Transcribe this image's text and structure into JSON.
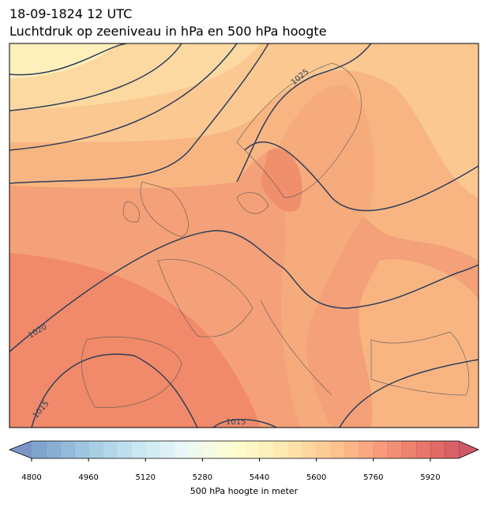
{
  "header": {
    "title": "18-09-1824 12 UTC",
    "subtitle": "Luchtdruk op zeeniveau in hPa en 500 hPa hoogte"
  },
  "map": {
    "contour_labels": [
      1025,
      1020,
      1015,
      1015
    ]
  },
  "colorbar": {
    "lim": [
      4800,
      6000
    ],
    "ticks": [
      4800,
      4960,
      5120,
      5280,
      5440,
      5600,
      5760,
      5920
    ],
    "label": "500 hPa hoogte in meter"
  }
}
